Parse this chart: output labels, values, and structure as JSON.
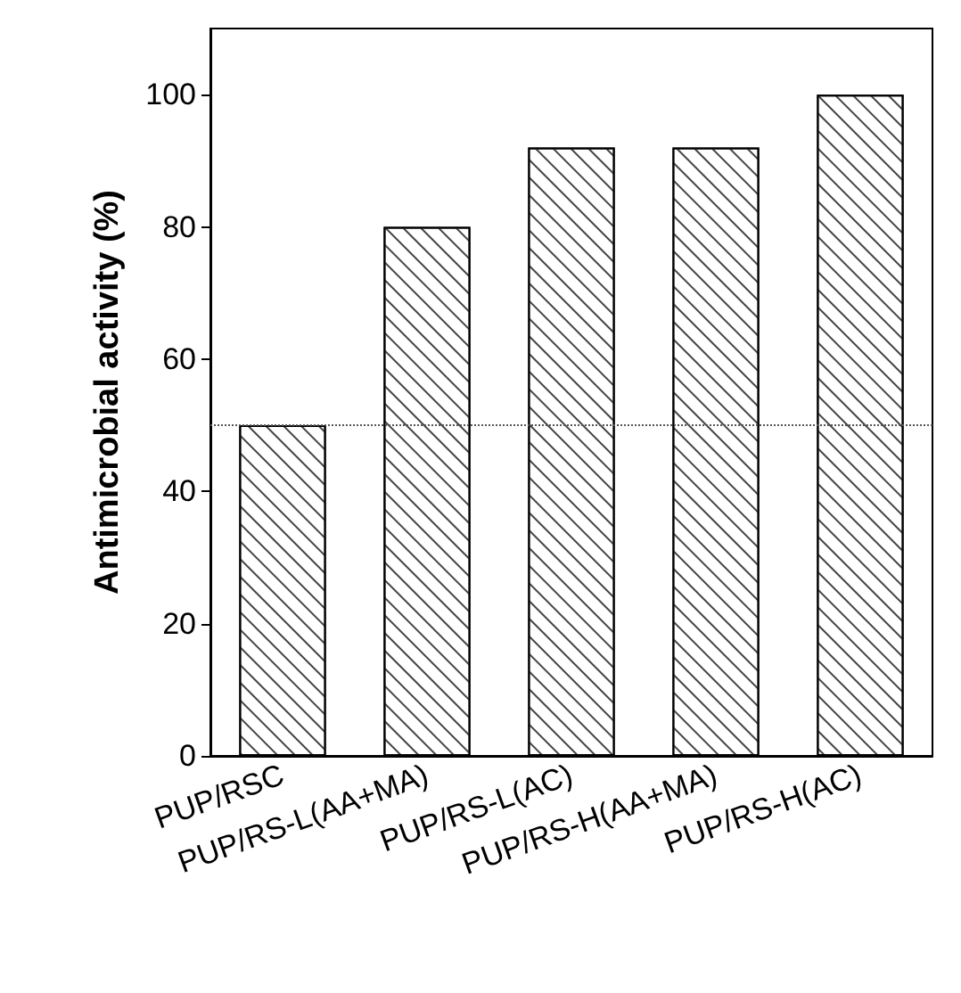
{
  "chart_data": {
    "type": "bar",
    "ylabel": "Antimicrobial activity (%)",
    "categories": [
      "PUP/RSC",
      "PUP/RS-L(AA+MA)",
      "PUP/RS-L(AC)",
      "PUP/RS-H(AA+MA)",
      "PUP/RS-H(AC)"
    ],
    "values": [
      50,
      80,
      92,
      92,
      100
    ],
    "color": "#ffffff",
    "ylim": [
      0,
      110
    ],
    "yticks": [
      0,
      20,
      40,
      60,
      80,
      100
    ],
    "ref_lines": [
      {
        "axis": "y",
        "value": 50,
        "line_style": "dotted",
        "color": "#555555"
      }
    ]
  }
}
